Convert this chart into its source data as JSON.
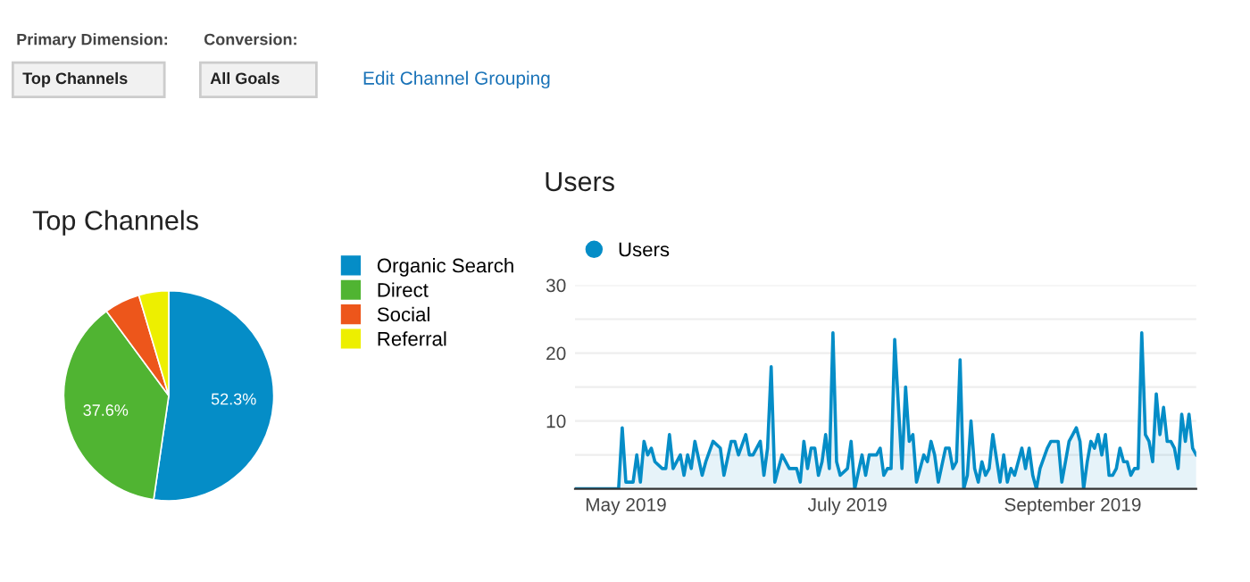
{
  "chart_data": [
    {
      "type": "pie",
      "title": "Top Channels",
      "categories": [
        "Organic Search",
        "Direct",
        "Social",
        "Referral"
      ],
      "values": [
        52.3,
        37.6,
        5.5,
        4.6
      ],
      "colors": [
        "#058dc7",
        "#50b432",
        "#ed561b",
        "#edef00"
      ],
      "value_labels": [
        "52.3%",
        "37.6%",
        null,
        null
      ],
      "legend": "right",
      "annotations": [
        "Primary Dimension:",
        "Top Channels",
        "Conversion:",
        "All Goals",
        "Edit Channel Grouping"
      ]
    },
    {
      "type": "area",
      "title": "Users",
      "legend": "top left",
      "grid": "y",
      "marker": "none",
      "xlim": [
        "2019-04-17",
        "2019-10-05"
      ],
      "xticks": [
        {
          "value": "2019-05-01",
          "label": "May 2019"
        },
        {
          "value": "2019-07-01",
          "label": "July 2019"
        },
        {
          "value": "2019-09-01",
          "label": "September 2019"
        }
      ],
      "ylim": [
        0,
        30
      ],
      "yticks": [
        {
          "value": 0,
          "label": null
        },
        {
          "value": 5,
          "label": null
        },
        10,
        {
          "value": 15,
          "label": null
        },
        20,
        {
          "value": 25,
          "label": null
        },
        30
      ],
      "series": [
        {
          "name": "Users",
          "color": "#058dc7",
          "x": [
            "2019-04-17",
            "2019-04-29",
            "2019-04-30",
            "2019-05-01",
            "2019-05-03",
            "2019-05-04",
            "2019-05-05",
            "2019-05-06",
            "2019-05-07",
            "2019-05-08",
            "2019-05-09",
            "2019-05-11",
            "2019-05-12",
            "2019-05-13",
            "2019-05-14",
            "2019-05-16",
            "2019-05-17",
            "2019-05-18",
            "2019-05-19",
            "2019-05-20",
            "2019-05-22",
            "2019-05-23",
            "2019-05-25",
            "2019-05-27",
            "2019-05-28",
            "2019-05-30",
            "2019-05-31",
            "2019-06-01",
            "2019-06-03",
            "2019-06-04",
            "2019-06-05",
            "2019-06-07",
            "2019-06-08",
            "2019-06-09",
            "2019-06-10",
            "2019-06-11",
            "2019-06-13",
            "2019-06-15",
            "2019-06-17",
            "2019-06-18",
            "2019-06-19",
            "2019-06-20",
            "2019-06-21",
            "2019-06-22",
            "2019-06-23",
            "2019-06-24",
            "2019-06-25",
            "2019-06-26",
            "2019-06-27",
            "2019-06-28",
            "2019-06-29",
            "2019-07-01",
            "2019-07-02",
            "2019-07-03",
            "2019-07-05",
            "2019-07-06",
            "2019-07-07",
            "2019-07-09",
            "2019-07-10",
            "2019-07-11",
            "2019-07-12",
            "2019-07-13",
            "2019-07-14",
            "2019-07-16",
            "2019-07-17",
            "2019-07-18",
            "2019-07-19",
            "2019-07-20",
            "2019-07-22",
            "2019-07-23",
            "2019-07-24",
            "2019-07-25",
            "2019-07-26",
            "2019-07-28",
            "2019-07-29",
            "2019-07-30",
            "2019-07-31",
            "2019-08-01",
            "2019-08-02",
            "2019-08-03",
            "2019-08-04",
            "2019-08-05",
            "2019-08-06",
            "2019-08-07",
            "2019-08-08",
            "2019-08-09",
            "2019-08-10",
            "2019-08-12",
            "2019-08-13",
            "2019-08-14",
            "2019-08-15",
            "2019-08-16",
            "2019-08-18",
            "2019-08-19",
            "2019-08-20",
            "2019-08-21",
            "2019-08-22",
            "2019-08-23",
            "2019-08-25",
            "2019-08-26",
            "2019-08-28",
            "2019-08-29",
            "2019-08-31",
            "2019-09-01",
            "2019-09-02",
            "2019-09-03",
            "2019-09-04",
            "2019-09-05",
            "2019-09-06",
            "2019-09-07",
            "2019-09-08",
            "2019-09-09",
            "2019-09-10",
            "2019-09-11",
            "2019-09-12",
            "2019-09-13",
            "2019-09-14",
            "2019-09-15",
            "2019-09-16",
            "2019-09-17",
            "2019-09-18",
            "2019-09-19",
            "2019-09-20",
            "2019-09-21",
            "2019-09-22",
            "2019-09-23",
            "2019-09-24",
            "2019-09-25",
            "2019-09-26",
            "2019-09-27",
            "2019-09-28",
            "2019-09-29",
            "2019-09-30",
            "2019-10-01",
            "2019-10-02",
            "2019-10-03",
            "2019-10-04",
            "2019-10-05"
          ],
          "values": [
            0,
            0,
            9,
            1,
            1,
            5,
            1,
            7,
            5,
            6,
            4,
            3,
            3,
            8,
            3,
            5,
            2,
            5,
            3,
            7,
            2,
            4,
            7,
            6,
            2,
            7,
            7,
            5,
            8,
            5,
            5,
            7,
            2,
            6,
            18,
            1,
            5,
            3,
            3,
            1,
            7,
            3,
            6,
            6,
            2,
            4,
            8,
            3,
            23,
            4,
            2,
            3,
            7,
            0,
            5,
            2,
            5,
            5,
            6,
            2,
            3,
            3,
            22,
            3,
            15,
            7,
            8,
            1,
            5,
            4,
            7,
            5,
            1,
            6,
            6,
            3,
            4,
            19,
            0,
            2,
            10,
            3,
            1,
            4,
            2,
            3,
            8,
            1,
            5,
            1,
            3,
            2,
            6,
            3,
            6,
            2,
            0,
            3,
            6,
            7,
            7,
            1,
            7,
            8,
            9,
            7,
            0,
            4,
            7,
            6,
            8,
            5,
            8,
            2,
            2,
            3,
            6,
            4,
            4,
            2,
            3,
            3,
            23,
            8,
            7,
            4,
            14,
            8,
            12,
            7,
            7,
            6,
            3,
            11,
            7,
            11,
            6,
            5
          ]
        }
      ]
    }
  ]
}
